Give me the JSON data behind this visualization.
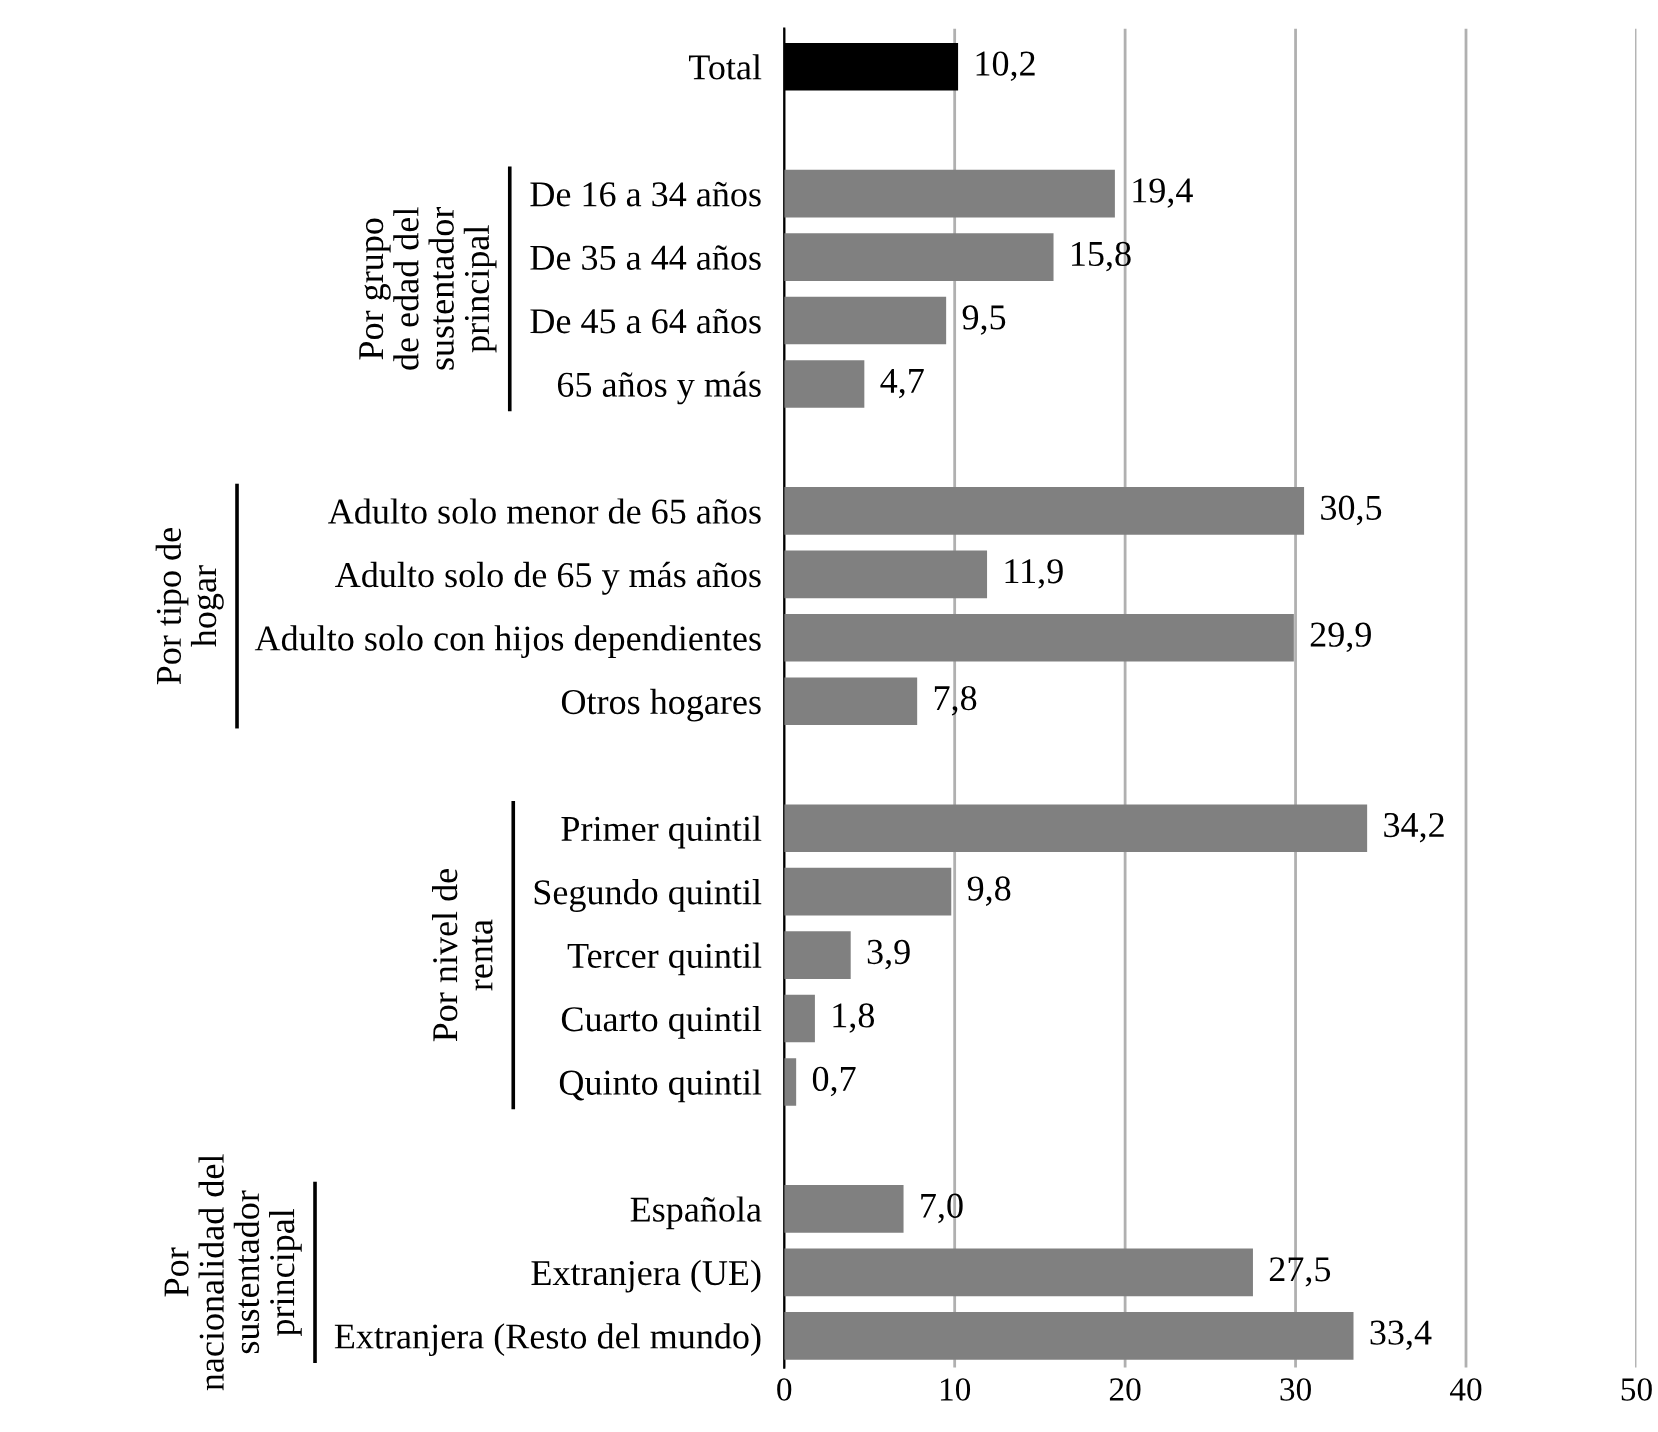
{
  "chart_data": {
    "type": "bar",
    "orientation": "horizontal",
    "categories": [
      "Total",
      null,
      "De 16 a 34 años",
      "De 35 a 44 años",
      "De 45 a 64 años",
      "65 años y más",
      null,
      "Adulto solo menor de 65 años",
      "Adulto solo de 65 y más años",
      "Adulto solo con hijos dependientes",
      "Otros hogares",
      null,
      "Primer quintil",
      "Segundo quintil",
      "Tercer quintil",
      "Cuarto quintil",
      "Quinto quintil",
      null,
      "Española",
      "Extranjera (UE)",
      "Extranjera (Resto del mundo)"
    ],
    "values": [
      10.2,
      null,
      19.4,
      15.8,
      9.5,
      4.7,
      null,
      30.5,
      11.9,
      29.9,
      7.8,
      null,
      34.2,
      9.8,
      3.9,
      1.8,
      0.7,
      null,
      7.0,
      27.5,
      33.4
    ],
    "value_labels": [
      "10,2",
      null,
      "19,4",
      "15,8",
      "9,5",
      "4,7",
      null,
      "30,5",
      "11,9",
      "29,9",
      "7,8",
      null,
      "34,2",
      "9,8",
      "3,9",
      "1,8",
      "0,7",
      null,
      "7,0",
      "27,5",
      "33,4"
    ],
    "colors": [
      "#000000",
      null,
      "#808080",
      "#808080",
      "#808080",
      "#808080",
      null,
      "#808080",
      "#808080",
      "#808080",
      "#808080",
      null,
      "#808080",
      "#808080",
      "#808080",
      "#808080",
      "#808080",
      null,
      "#808080",
      "#808080",
      "#808080"
    ],
    "annotations": [
      "Por grupo\nde edad del\nsustentador\nprincipal",
      "Por tipo de\nhogar",
      "Por nivel de\nrenta",
      "Por\nnacionalidad del\nsustentador\nprincipal"
    ],
    "xlim": [
      0,
      50
    ],
    "xticks": [
      0,
      10,
      20,
      30,
      40,
      50
    ],
    "grid": "x",
    "legend": false
  }
}
